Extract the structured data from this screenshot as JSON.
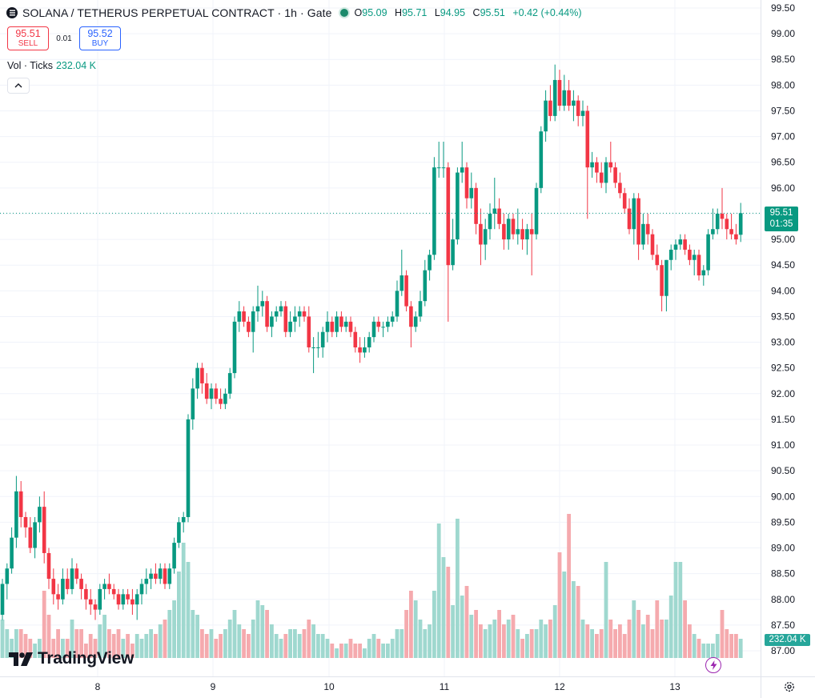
{
  "header": {
    "title": "SOLANA / TETHERUS PERPETUAL CONTRACT · 1h · Gate",
    "ohlc": [
      {
        "key": "O",
        "value": "95.09"
      },
      {
        "key": "H",
        "value": "95.71"
      },
      {
        "key": "L",
        "value": "94.95"
      },
      {
        "key": "C",
        "value": "95.51"
      }
    ],
    "change": "+0.42 (+0.44%)"
  },
  "trade": {
    "sell_price": "95.51",
    "sell_label": "SELL",
    "spread": "0.01",
    "buy_price": "95.52",
    "buy_label": "BUY"
  },
  "volume_legend": {
    "label": "Vol · Ticks",
    "value": "232.04 K"
  },
  "badges": {
    "price": "95.51",
    "countdown": "01:35",
    "volume": "232.04 K"
  },
  "logo": {
    "text": "TradingView"
  },
  "icons": {
    "symbol": "solana-icon",
    "collapse": "chevron-up-icon",
    "bolt": "lightning-icon",
    "settings": "gear-icon"
  },
  "colors": {
    "up": "#089981",
    "down": "#f23645",
    "up_volume": "#9fd8cf",
    "down_volume": "#f5aaae"
  },
  "chart_data": {
    "type": "candlestick",
    "price_axis_ticks": [
      "99.50",
      "99.00",
      "98.50",
      "98.00",
      "97.50",
      "97.00",
      "96.50",
      "96.00",
      "95.50",
      "95.00",
      "94.50",
      "94.00",
      "93.50",
      "93.00",
      "92.50",
      "92.00",
      "91.50",
      "91.00",
      "90.50",
      "90.00",
      "89.50",
      "89.00",
      "88.50",
      "88.00",
      "87.50",
      "87.00"
    ],
    "time_axis_ticks": [
      "8",
      "9",
      "10",
      "11",
      "12",
      "13"
    ],
    "ylim": [
      86.9,
      99.6
    ],
    "last_price": 95.51,
    "grid": true,
    "candles": [
      {
        "o": 87.7,
        "h": 88.4,
        "l": 87.6,
        "c": 88.3
      },
      {
        "o": 88.3,
        "h": 88.7,
        "l": 88.0,
        "c": 88.6
      },
      {
        "o": 88.6,
        "h": 89.4,
        "l": 88.5,
        "c": 89.2
      },
      {
        "o": 89.2,
        "h": 90.4,
        "l": 89.0,
        "c": 90.1
      },
      {
        "o": 90.1,
        "h": 90.3,
        "l": 89.4,
        "c": 89.6
      },
      {
        "o": 89.6,
        "h": 89.7,
        "l": 89.2,
        "c": 89.4
      },
      {
        "o": 89.4,
        "h": 89.6,
        "l": 88.9,
        "c": 89.0
      },
      {
        "o": 89.0,
        "h": 89.6,
        "l": 88.8,
        "c": 89.5
      },
      {
        "o": 89.5,
        "h": 90.0,
        "l": 89.3,
        "c": 89.8
      },
      {
        "o": 89.8,
        "h": 90.1,
        "l": 88.7,
        "c": 88.9
      },
      {
        "o": 88.9,
        "h": 89.0,
        "l": 88.2,
        "c": 88.4
      },
      {
        "o": 88.4,
        "h": 88.6,
        "l": 87.9,
        "c": 88.1
      },
      {
        "o": 88.1,
        "h": 88.3,
        "l": 87.8,
        "c": 88.0
      },
      {
        "o": 88.0,
        "h": 88.6,
        "l": 87.9,
        "c": 88.4
      },
      {
        "o": 88.4,
        "h": 88.6,
        "l": 88.1,
        "c": 88.2
      },
      {
        "o": 88.2,
        "h": 88.8,
        "l": 88.1,
        "c": 88.6
      },
      {
        "o": 88.6,
        "h": 88.7,
        "l": 88.3,
        "c": 88.4
      },
      {
        "o": 88.4,
        "h": 88.5,
        "l": 88.0,
        "c": 88.2
      },
      {
        "o": 88.2,
        "h": 88.3,
        "l": 87.8,
        "c": 88.0
      },
      {
        "o": 88.0,
        "h": 88.2,
        "l": 87.7,
        "c": 87.9
      },
      {
        "o": 87.9,
        "h": 88.0,
        "l": 87.6,
        "c": 87.8
      },
      {
        "o": 87.8,
        "h": 88.3,
        "l": 87.7,
        "c": 88.2
      },
      {
        "o": 88.2,
        "h": 88.4,
        "l": 88.0,
        "c": 88.3
      },
      {
        "o": 88.3,
        "h": 88.5,
        "l": 88.1,
        "c": 88.2
      },
      {
        "o": 88.2,
        "h": 88.3,
        "l": 88.0,
        "c": 88.1
      },
      {
        "o": 88.1,
        "h": 88.2,
        "l": 87.8,
        "c": 87.9
      },
      {
        "o": 87.9,
        "h": 88.2,
        "l": 87.8,
        "c": 88.1
      },
      {
        "o": 88.1,
        "h": 88.2,
        "l": 87.9,
        "c": 88.0
      },
      {
        "o": 88.0,
        "h": 88.2,
        "l": 87.7,
        "c": 87.9
      },
      {
        "o": 87.9,
        "h": 88.2,
        "l": 87.6,
        "c": 88.1
      },
      {
        "o": 88.1,
        "h": 88.4,
        "l": 87.9,
        "c": 88.3
      },
      {
        "o": 88.3,
        "h": 88.6,
        "l": 88.1,
        "c": 88.4
      },
      {
        "o": 88.4,
        "h": 88.6,
        "l": 88.2,
        "c": 88.5
      },
      {
        "o": 88.5,
        "h": 88.7,
        "l": 88.3,
        "c": 88.4
      },
      {
        "o": 88.4,
        "h": 88.7,
        "l": 88.3,
        "c": 88.6
      },
      {
        "o": 88.6,
        "h": 88.7,
        "l": 88.2,
        "c": 88.3
      },
      {
        "o": 88.3,
        "h": 88.7,
        "l": 88.2,
        "c": 88.6
      },
      {
        "o": 88.6,
        "h": 89.2,
        "l": 88.5,
        "c": 89.1
      },
      {
        "o": 89.1,
        "h": 89.6,
        "l": 89.0,
        "c": 89.5
      },
      {
        "o": 89.5,
        "h": 89.7,
        "l": 89.3,
        "c": 89.6
      },
      {
        "o": 89.6,
        "h": 91.6,
        "l": 89.5,
        "c": 91.5
      },
      {
        "o": 91.5,
        "h": 92.3,
        "l": 91.3,
        "c": 92.1
      },
      {
        "o": 92.1,
        "h": 92.6,
        "l": 91.9,
        "c": 92.5
      },
      {
        "o": 92.5,
        "h": 92.6,
        "l": 92.0,
        "c": 92.2
      },
      {
        "o": 92.2,
        "h": 92.4,
        "l": 91.8,
        "c": 91.9
      },
      {
        "o": 91.9,
        "h": 92.2,
        "l": 91.7,
        "c": 92.1
      },
      {
        "o": 92.1,
        "h": 92.2,
        "l": 91.8,
        "c": 91.9
      },
      {
        "o": 91.9,
        "h": 92.1,
        "l": 91.7,
        "c": 91.8
      },
      {
        "o": 91.8,
        "h": 92.1,
        "l": 91.7,
        "c": 92.0
      },
      {
        "o": 92.0,
        "h": 92.5,
        "l": 91.9,
        "c": 92.4
      },
      {
        "o": 92.4,
        "h": 93.5,
        "l": 92.3,
        "c": 93.4
      },
      {
        "o": 93.4,
        "h": 93.8,
        "l": 93.2,
        "c": 93.6
      },
      {
        "o": 93.6,
        "h": 93.7,
        "l": 93.3,
        "c": 93.4
      },
      {
        "o": 93.4,
        "h": 93.5,
        "l": 93.1,
        "c": 93.2
      },
      {
        "o": 93.2,
        "h": 93.7,
        "l": 92.8,
        "c": 93.6
      },
      {
        "o": 93.6,
        "h": 94.1,
        "l": 93.4,
        "c": 93.7
      },
      {
        "o": 93.7,
        "h": 94.0,
        "l": 93.5,
        "c": 93.8
      },
      {
        "o": 93.8,
        "h": 93.9,
        "l": 93.2,
        "c": 93.3
      },
      {
        "o": 93.3,
        "h": 93.6,
        "l": 93.1,
        "c": 93.5
      },
      {
        "o": 93.5,
        "h": 93.7,
        "l": 93.4,
        "c": 93.6
      },
      {
        "o": 93.6,
        "h": 93.8,
        "l": 93.5,
        "c": 93.7
      },
      {
        "o": 93.7,
        "h": 93.8,
        "l": 93.1,
        "c": 93.2
      },
      {
        "o": 93.2,
        "h": 93.6,
        "l": 93.1,
        "c": 93.4
      },
      {
        "o": 93.4,
        "h": 93.7,
        "l": 93.2,
        "c": 93.5
      },
      {
        "o": 93.5,
        "h": 93.7,
        "l": 93.3,
        "c": 93.6
      },
      {
        "o": 93.6,
        "h": 93.7,
        "l": 93.4,
        "c": 93.5
      },
      {
        "o": 93.5,
        "h": 93.7,
        "l": 92.8,
        "c": 92.9
      },
      {
        "o": 92.9,
        "h": 93.1,
        "l": 92.4,
        "c": 92.9
      },
      {
        "o": 92.9,
        "h": 93.2,
        "l": 92.7,
        "c": 92.9
      },
      {
        "o": 92.9,
        "h": 93.3,
        "l": 92.7,
        "c": 93.2
      },
      {
        "o": 93.2,
        "h": 93.6,
        "l": 93.0,
        "c": 93.4
      },
      {
        "o": 93.4,
        "h": 93.5,
        "l": 93.1,
        "c": 93.2
      },
      {
        "o": 93.2,
        "h": 93.6,
        "l": 93.1,
        "c": 93.5
      },
      {
        "o": 93.5,
        "h": 93.6,
        "l": 93.2,
        "c": 93.3
      },
      {
        "o": 93.3,
        "h": 93.5,
        "l": 93.2,
        "c": 93.4
      },
      {
        "o": 93.4,
        "h": 93.5,
        "l": 93.1,
        "c": 93.2
      },
      {
        "o": 93.2,
        "h": 93.3,
        "l": 92.8,
        "c": 92.9
      },
      {
        "o": 92.9,
        "h": 93.1,
        "l": 92.6,
        "c": 92.8
      },
      {
        "o": 92.8,
        "h": 93.1,
        "l": 92.7,
        "c": 92.9
      },
      {
        "o": 92.9,
        "h": 93.2,
        "l": 92.8,
        "c": 93.1
      },
      {
        "o": 93.1,
        "h": 93.5,
        "l": 93.0,
        "c": 93.4
      },
      {
        "o": 93.4,
        "h": 93.5,
        "l": 93.2,
        "c": 93.3
      },
      {
        "o": 93.3,
        "h": 93.4,
        "l": 93.1,
        "c": 93.3
      },
      {
        "o": 93.3,
        "h": 93.5,
        "l": 93.2,
        "c": 93.4
      },
      {
        "o": 93.4,
        "h": 93.6,
        "l": 93.3,
        "c": 93.5
      },
      {
        "o": 93.5,
        "h": 94.2,
        "l": 93.4,
        "c": 94.0
      },
      {
        "o": 94.0,
        "h": 94.8,
        "l": 93.9,
        "c": 94.3
      },
      {
        "o": 94.3,
        "h": 94.4,
        "l": 93.6,
        "c": 93.7
      },
      {
        "o": 93.7,
        "h": 93.8,
        "l": 92.9,
        "c": 93.3
      },
      {
        "o": 93.3,
        "h": 93.6,
        "l": 93.2,
        "c": 93.5
      },
      {
        "o": 93.5,
        "h": 94.0,
        "l": 93.4,
        "c": 93.8
      },
      {
        "o": 93.8,
        "h": 94.6,
        "l": 93.7,
        "c": 94.4
      },
      {
        "o": 94.4,
        "h": 94.8,
        "l": 94.2,
        "c": 94.7
      },
      {
        "o": 94.7,
        "h": 96.6,
        "l": 94.6,
        "c": 96.4
      },
      {
        "o": 96.4,
        "h": 96.9,
        "l": 96.2,
        "c": 96.4
      },
      {
        "o": 96.4,
        "h": 96.9,
        "l": 96.2,
        "c": 96.4
      },
      {
        "o": 96.4,
        "h": 96.5,
        "l": 93.4,
        "c": 94.5
      },
      {
        "o": 94.5,
        "h": 95.4,
        "l": 94.4,
        "c": 95.0
      },
      {
        "o": 95.0,
        "h": 96.4,
        "l": 94.9,
        "c": 96.3
      },
      {
        "o": 96.3,
        "h": 96.9,
        "l": 96.1,
        "c": 96.4
      },
      {
        "o": 96.4,
        "h": 96.5,
        "l": 95.6,
        "c": 95.8
      },
      {
        "o": 95.8,
        "h": 96.3,
        "l": 95.6,
        "c": 96.0
      },
      {
        "o": 96.0,
        "h": 96.1,
        "l": 95.1,
        "c": 95.3
      },
      {
        "o": 95.3,
        "h": 95.6,
        "l": 94.5,
        "c": 94.9
      },
      {
        "o": 94.9,
        "h": 95.4,
        "l": 94.6,
        "c": 95.2
      },
      {
        "o": 95.2,
        "h": 95.7,
        "l": 95.0,
        "c": 95.5
      },
      {
        "o": 95.5,
        "h": 96.2,
        "l": 95.2,
        "c": 95.6
      },
      {
        "o": 95.6,
        "h": 95.8,
        "l": 95.2,
        "c": 95.3
      },
      {
        "o": 95.3,
        "h": 95.5,
        "l": 94.8,
        "c": 95.0
      },
      {
        "o": 95.0,
        "h": 95.5,
        "l": 94.8,
        "c": 95.4
      },
      {
        "o": 95.4,
        "h": 95.5,
        "l": 95.0,
        "c": 95.1
      },
      {
        "o": 95.1,
        "h": 95.6,
        "l": 94.9,
        "c": 95.2
      },
      {
        "o": 95.2,
        "h": 95.4,
        "l": 94.8,
        "c": 95.0
      },
      {
        "o": 95.0,
        "h": 95.3,
        "l": 94.7,
        "c": 95.2
      },
      {
        "o": 95.2,
        "h": 95.5,
        "l": 94.3,
        "c": 95.1
      },
      {
        "o": 95.1,
        "h": 96.1,
        "l": 95.0,
        "c": 96.0
      },
      {
        "o": 96.0,
        "h": 97.2,
        "l": 95.9,
        "c": 97.1
      },
      {
        "o": 97.1,
        "h": 97.9,
        "l": 96.9,
        "c": 97.7
      },
      {
        "o": 97.7,
        "h": 98.0,
        "l": 97.3,
        "c": 97.4
      },
      {
        "o": 97.4,
        "h": 98.4,
        "l": 97.3,
        "c": 98.1
      },
      {
        "o": 98.1,
        "h": 98.3,
        "l": 97.5,
        "c": 97.6
      },
      {
        "o": 97.6,
        "h": 98.2,
        "l": 97.5,
        "c": 97.9
      },
      {
        "o": 97.9,
        "h": 98.1,
        "l": 97.5,
        "c": 97.6
      },
      {
        "o": 97.6,
        "h": 97.9,
        "l": 97.3,
        "c": 97.7
      },
      {
        "o": 97.7,
        "h": 97.8,
        "l": 97.2,
        "c": 97.4
      },
      {
        "o": 97.4,
        "h": 97.7,
        "l": 97.2,
        "c": 97.5
      },
      {
        "o": 97.5,
        "h": 97.6,
        "l": 95.4,
        "c": 96.4
      },
      {
        "o": 96.4,
        "h": 96.7,
        "l": 96.2,
        "c": 96.5
      },
      {
        "o": 96.5,
        "h": 96.6,
        "l": 96.1,
        "c": 96.3
      },
      {
        "o": 96.3,
        "h": 96.5,
        "l": 96.0,
        "c": 96.1
      },
      {
        "o": 96.1,
        "h": 96.6,
        "l": 95.9,
        "c": 96.5
      },
      {
        "o": 96.5,
        "h": 96.9,
        "l": 96.3,
        "c": 96.4
      },
      {
        "o": 96.4,
        "h": 96.5,
        "l": 96.0,
        "c": 96.1
      },
      {
        "o": 96.1,
        "h": 96.3,
        "l": 95.8,
        "c": 95.9
      },
      {
        "o": 95.9,
        "h": 96.0,
        "l": 95.5,
        "c": 95.6
      },
      {
        "o": 95.6,
        "h": 95.8,
        "l": 95.1,
        "c": 95.2
      },
      {
        "o": 95.2,
        "h": 95.9,
        "l": 94.9,
        "c": 95.8
      },
      {
        "o": 95.8,
        "h": 95.9,
        "l": 94.6,
        "c": 94.9
      },
      {
        "o": 94.9,
        "h": 95.5,
        "l": 94.8,
        "c": 95.3
      },
      {
        "o": 95.3,
        "h": 95.5,
        "l": 94.9,
        "c": 95.1
      },
      {
        "o": 95.1,
        "h": 95.2,
        "l": 94.6,
        "c": 94.7
      },
      {
        "o": 94.7,
        "h": 94.9,
        "l": 94.4,
        "c": 94.5
      },
      {
        "o": 94.5,
        "h": 94.6,
        "l": 93.6,
        "c": 93.9
      },
      {
        "o": 93.9,
        "h": 94.6,
        "l": 93.6,
        "c": 94.6
      },
      {
        "o": 94.6,
        "h": 94.9,
        "l": 94.4,
        "c": 94.8
      },
      {
        "o": 94.8,
        "h": 95.0,
        "l": 94.6,
        "c": 94.9
      },
      {
        "o": 94.9,
        "h": 95.1,
        "l": 94.8,
        "c": 95.0
      },
      {
        "o": 95.0,
        "h": 95.1,
        "l": 94.7,
        "c": 94.8
      },
      {
        "o": 94.8,
        "h": 94.9,
        "l": 94.5,
        "c": 94.6
      },
      {
        "o": 94.6,
        "h": 94.8,
        "l": 94.3,
        "c": 94.7
      },
      {
        "o": 94.7,
        "h": 94.8,
        "l": 94.2,
        "c": 94.3
      },
      {
        "o": 94.3,
        "h": 94.5,
        "l": 94.1,
        "c": 94.4
      },
      {
        "o": 94.4,
        "h": 95.2,
        "l": 94.3,
        "c": 95.1
      },
      {
        "o": 95.1,
        "h": 95.6,
        "l": 95.0,
        "c": 95.2
      },
      {
        "o": 95.2,
        "h": 95.6,
        "l": 95.1,
        "c": 95.5
      },
      {
        "o": 95.5,
        "h": 96.0,
        "l": 95.2,
        "c": 95.4
      },
      {
        "o": 95.4,
        "h": 95.5,
        "l": 95.0,
        "c": 95.2
      },
      {
        "o": 95.2,
        "h": 95.5,
        "l": 95.0,
        "c": 95.1
      },
      {
        "o": 95.1,
        "h": 95.3,
        "l": 94.9,
        "c": 95.0
      },
      {
        "o": 95.09,
        "h": 95.71,
        "l": 94.95,
        "c": 95.51
      }
    ],
    "volume": [
      4,
      3,
      2,
      3,
      3,
      2.5,
      2,
      1.5,
      2,
      7,
      4.5,
      2,
      3,
      2,
      2,
      4,
      3,
      3,
      1.5,
      2.5,
      2,
      3.5,
      4.5,
      3,
      2.5,
      3,
      2,
      2.5,
      1.5,
      2.5,
      2,
      2.5,
      3,
      2.5,
      3.5,
      4,
      5,
      6,
      9,
      12,
      10,
      5,
      4.5,
      3,
      2.5,
      3,
      2,
      2.5,
      3,
      4,
      5,
      3.5,
      3,
      2.5,
      4,
      6,
      5.5,
      5,
      3.5,
      2.5,
      2,
      2.5,
      3,
      3,
      2.5,
      3,
      4,
      3.5,
      2.5,
      2.5,
      2,
      1.5,
      1,
      1.5,
      1.5,
      2,
      1.5,
      1.5,
      1,
      2,
      2.5,
      2,
      1.5,
      1.5,
      2,
      3,
      3,
      5,
      7,
      6,
      4,
      3,
      3.5,
      7,
      14,
      10.5,
      9.5,
      5.5,
      14.5,
      6.5,
      7.5,
      4.5,
      5,
      3.5,
      3,
      3.5,
      4,
      5,
      3.5,
      4,
      4.5,
      3,
      2,
      2.5,
      3,
      3,
      4,
      3.5,
      4,
      5.5,
      11,
      9,
      15,
      8,
      7.5,
      4,
      3.5,
      3,
      2.5,
      3,
      10,
      4,
      3,
      3.5,
      2.5,
      4,
      6,
      5,
      3.5,
      4.5,
      3,
      6,
      4,
      4,
      6.5,
      10,
      10,
      6,
      3.5,
      2.5,
      2,
      1.5,
      1.5,
      1.5,
      2.5,
      5,
      3,
      2.5,
      2.5,
      2,
      2.5
    ]
  }
}
